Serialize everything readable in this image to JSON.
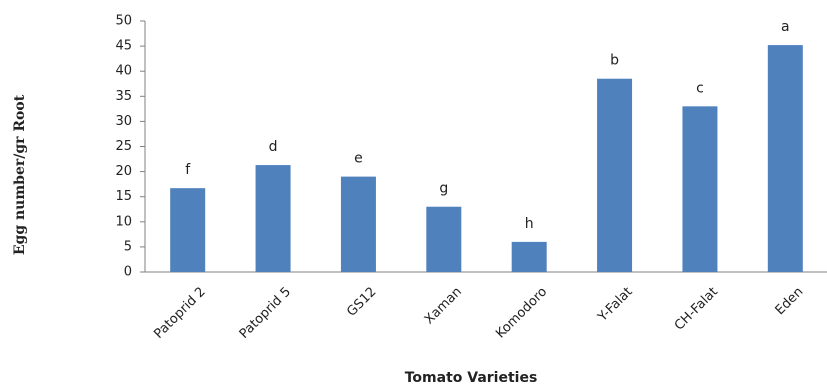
{
  "chart_data": {
    "type": "bar",
    "xlabel": "Tomato Varieties",
    "ylabel": "Egg number/gr Root",
    "ylim": [
      0,
      50
    ],
    "yticks": [
      0,
      5,
      10,
      15,
      20,
      25,
      30,
      35,
      40,
      45,
      50
    ],
    "grid": false,
    "legend": "none",
    "bar_color": "#4f81bd",
    "categories": [
      "Patoprid 2",
      "Patoprid 5",
      "GS12",
      "Xaman",
      "Komodoro",
      "Y-Falat",
      "CH-Falat",
      "Eden"
    ],
    "values": [
      16.7,
      21.3,
      19.0,
      13.0,
      6.0,
      38.5,
      33.0,
      45.2
    ],
    "letters": [
      "f",
      "d",
      "e",
      "g",
      "h",
      "b",
      "c",
      "a"
    ]
  }
}
